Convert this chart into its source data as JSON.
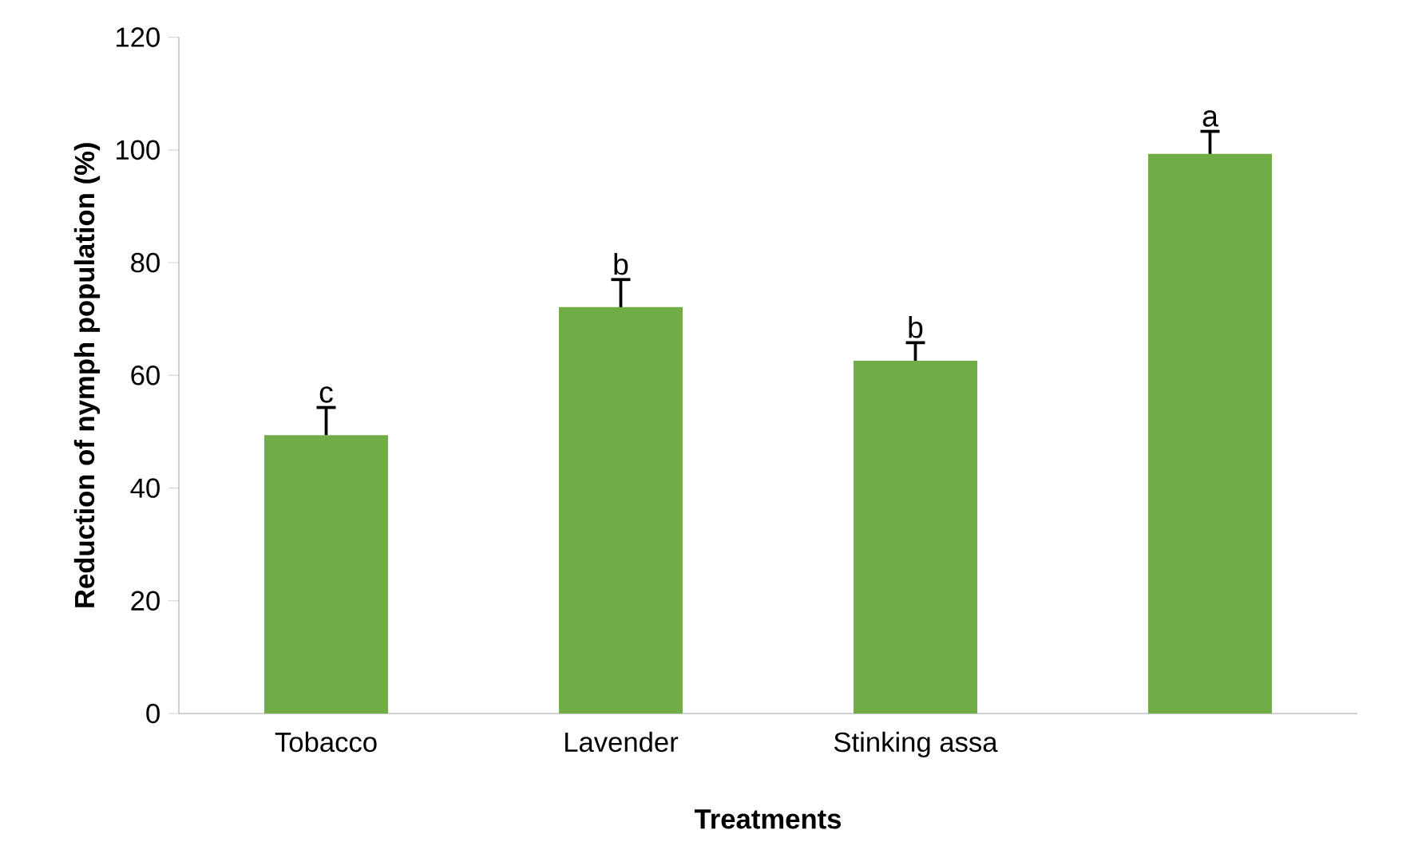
{
  "chart_data": {
    "type": "bar",
    "xlabel": "Treatments",
    "ylabel": "Reduction of nymph population (%)",
    "categories": [
      "Tobacco",
      "Lavender",
      "Stinking assa",
      null
    ],
    "values": [
      49.4,
      72.1,
      62.6,
      99.3
    ],
    "errors": [
      [
        49.4,
        54.3
      ],
      [
        72.1,
        77.0
      ],
      [
        62.6,
        65.8
      ],
      [
        99.3,
        103.3
      ]
    ],
    "value_labels": [
      "c",
      "b",
      "b",
      "a"
    ],
    "color": "#70ad47",
    "ylim": [
      0,
      120
    ],
    "yticks": [
      0,
      20,
      40,
      60,
      80,
      100,
      120
    ],
    "grid": false
  }
}
